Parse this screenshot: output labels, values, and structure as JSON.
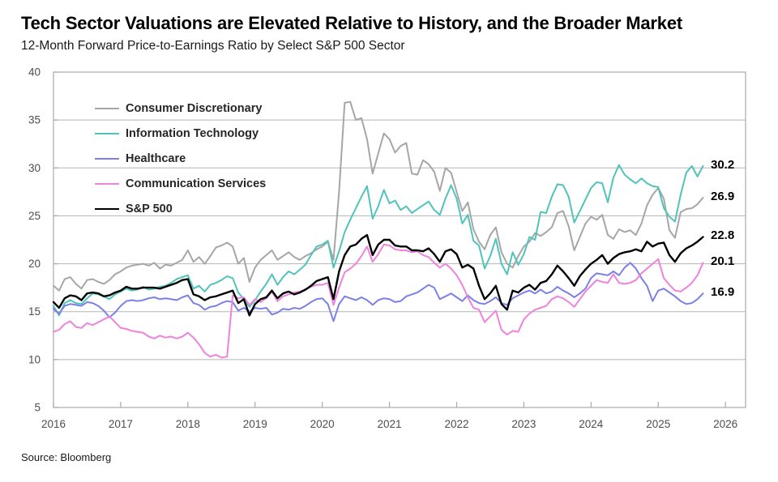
{
  "header": {
    "title": "Tech Sector Valuations are Elevated Relative to History, and the Broader Market",
    "subtitle": "12-Month Forward Price-to-Earnings Ratio by Select S&P 500 Sector"
  },
  "footer": {
    "source": "Source: Bloomberg"
  },
  "chart_data": {
    "type": "line",
    "title": "Tech Sector Valuations are Elevated Relative to History, and the Broader Market",
    "subtitle": "12-Month Forward Price-to-Earnings Ratio by Select S&P 500 Sector",
    "xlabel": "",
    "ylabel": "",
    "xlim": [
      2016,
      2026.3
    ],
    "ylim": [
      5,
      40
    ],
    "x_ticks": [
      2016,
      2017,
      2018,
      2019,
      2020,
      2021,
      2022,
      2023,
      2024,
      2025,
      2026
    ],
    "y_ticks": [
      5,
      10,
      15,
      20,
      25,
      30,
      35,
      40
    ],
    "y_gridlines": [
      10,
      15,
      20,
      25,
      30,
      35
    ],
    "grid": "horizontal",
    "legend_position": "inside-top-left",
    "x_start_year": 2016,
    "x_step_months": 1,
    "colors": {
      "gridline": "#b5b5b5",
      "frame": "#a9a9a9",
      "tick_text": "#4d4d4d"
    },
    "series": [
      {
        "name": "Consumer Discretionary",
        "color": "#a6a6a6",
        "width": 2.0,
        "end_label": "26.9",
        "values": [
          17.7,
          17.2,
          18.4,
          18.6,
          17.9,
          17.4,
          18.3,
          18.4,
          18.1,
          17.9,
          18.3,
          18.9,
          19.2,
          19.6,
          19.8,
          19.9,
          20.0,
          19.8,
          20.1,
          19.5,
          19.9,
          19.8,
          20.1,
          20.4,
          21.4,
          20.2,
          20.7,
          20.0,
          20.8,
          21.7,
          21.9,
          22.2,
          21.8,
          20.0,
          20.6,
          18.1,
          19.6,
          20.4,
          20.9,
          21.4,
          20.4,
          20.8,
          21.2,
          20.7,
          20.4,
          20.8,
          21.1,
          21.5,
          21.8,
          22.3,
          20.4,
          27.5,
          36.8,
          36.9,
          35.0,
          35.2,
          33.0,
          29.4,
          31.5,
          33.6,
          33.0,
          31.6,
          32.3,
          32.6,
          29.4,
          29.3,
          30.8,
          30.4,
          29.6,
          27.6,
          30.0,
          29.5,
          27.5,
          25.5,
          26.4,
          23.6,
          22.3,
          21.5,
          23.0,
          23.8,
          21.2,
          20.0,
          19.6,
          20.8,
          21.8,
          22.3,
          23.2,
          22.9,
          23.3,
          23.8,
          25.3,
          25.5,
          23.9,
          21.4,
          22.8,
          24.2,
          24.9,
          24.6,
          25.1,
          23.0,
          22.6,
          23.6,
          23.3,
          23.5,
          23.0,
          24.2,
          26.1,
          27.2,
          27.9,
          26.8,
          23.5,
          22.7,
          25.4,
          25.7,
          25.8,
          26.2,
          26.9
        ]
      },
      {
        "name": "Information Technology",
        "color": "#4fc3bc",
        "width": 2.0,
        "end_label": "30.2",
        "values": [
          15.6,
          14.6,
          15.9,
          16.2,
          15.9,
          15.8,
          16.4,
          16.9,
          16.8,
          16.6,
          16.3,
          16.8,
          17.1,
          17.4,
          17.2,
          17.3,
          17.6,
          17.3,
          17.4,
          17.6,
          17.7,
          18.0,
          18.4,
          18.6,
          18.8,
          17.4,
          17.7,
          17.1,
          17.8,
          18.0,
          18.3,
          18.7,
          18.5,
          17.0,
          16.3,
          15.5,
          16.2,
          17.1,
          17.9,
          18.9,
          17.8,
          18.6,
          19.2,
          18.9,
          19.4,
          19.9,
          20.9,
          21.8,
          22.0,
          22.4,
          19.6,
          21.3,
          23.3,
          24.6,
          25.8,
          27.0,
          28.1,
          24.7,
          26.0,
          27.7,
          26.3,
          26.6,
          25.6,
          26.0,
          25.3,
          25.7,
          26.1,
          26.5,
          25.6,
          25.1,
          26.8,
          28.2,
          26.8,
          24.2,
          25.1,
          22.4,
          21.9,
          19.5,
          20.8,
          22.6,
          20.0,
          18.9,
          21.2,
          19.9,
          21.0,
          22.8,
          22.5,
          25.4,
          25.3,
          27.0,
          28.3,
          28.2,
          27.0,
          24.3,
          25.5,
          26.7,
          27.9,
          28.5,
          28.4,
          26.4,
          29.0,
          30.3,
          29.3,
          28.8,
          28.4,
          28.9,
          28.4,
          28.1,
          28.0,
          25.8,
          24.9,
          24.4,
          27.2,
          29.5,
          30.2,
          29.1,
          30.2
        ]
      },
      {
        "name": "Healthcare",
        "color": "#7b80e8",
        "width": 2.0,
        "end_label": "16.9",
        "values": [
          15.3,
          14.8,
          15.6,
          15.8,
          15.7,
          15.6,
          16.0,
          15.9,
          15.6,
          15.1,
          14.4,
          14.9,
          15.6,
          16.1,
          16.2,
          16.1,
          16.2,
          16.4,
          16.5,
          16.3,
          16.4,
          16.3,
          16.2,
          16.5,
          16.7,
          15.9,
          15.7,
          15.2,
          15.5,
          15.6,
          15.9,
          16.1,
          16.0,
          15.1,
          15.4,
          15.0,
          15.4,
          15.3,
          15.4,
          14.7,
          14.9,
          15.3,
          15.2,
          15.4,
          15.3,
          15.6,
          16.0,
          16.3,
          16.4,
          15.8,
          14.0,
          15.8,
          16.6,
          16.4,
          16.2,
          16.5,
          16.2,
          15.7,
          16.2,
          16.4,
          16.3,
          16.0,
          16.1,
          16.6,
          16.8,
          17.0,
          17.4,
          17.8,
          17.5,
          16.3,
          16.6,
          16.9,
          16.5,
          16.1,
          16.7,
          16.2,
          15.9,
          15.8,
          16.1,
          16.5,
          15.9,
          15.7,
          16.4,
          16.7,
          17.0,
          17.2,
          16.9,
          17.3,
          16.9,
          17.1,
          17.6,
          17.2,
          16.9,
          16.5,
          16.9,
          17.4,
          18.5,
          19.0,
          18.9,
          18.8,
          19.2,
          18.8,
          19.6,
          20.1,
          19.5,
          18.5,
          17.7,
          16.1,
          17.2,
          17.4,
          17.0,
          16.6,
          16.1,
          15.8,
          15.9,
          16.3,
          16.9
        ]
      },
      {
        "name": "Communication Services",
        "color": "#ef82dc",
        "width": 2.0,
        "end_label": "20.1",
        "values": [
          12.9,
          13.1,
          13.7,
          14.0,
          13.4,
          13.3,
          13.8,
          13.6,
          13.9,
          14.2,
          14.5,
          13.9,
          13.3,
          13.2,
          13.0,
          12.9,
          12.8,
          12.4,
          12.2,
          12.5,
          12.3,
          12.4,
          12.2,
          12.4,
          12.8,
          12.3,
          11.6,
          10.7,
          10.3,
          10.5,
          10.2,
          10.3,
          16.7,
          16.4,
          16.5,
          15.7,
          16.3,
          16.0,
          16.4,
          17.1,
          16.1,
          16.6,
          16.8,
          17.0,
          17.1,
          17.3,
          17.6,
          17.8,
          17.8,
          18.0,
          15.7,
          17.5,
          19.1,
          19.5,
          20.0,
          20.8,
          21.8,
          20.2,
          21.0,
          22.0,
          21.9,
          21.5,
          21.4,
          21.4,
          21.2,
          21.3,
          20.9,
          20.7,
          20.1,
          19.6,
          20.0,
          19.5,
          18.8,
          17.8,
          16.5,
          15.4,
          15.2,
          13.9,
          14.5,
          15.1,
          13.1,
          12.6,
          13.0,
          12.9,
          14.2,
          14.8,
          15.2,
          15.4,
          15.6,
          16.3,
          16.6,
          16.4,
          16.0,
          15.5,
          16.3,
          17.1,
          17.7,
          18.3,
          18.1,
          18.0,
          18.9,
          18.0,
          17.9,
          18.0,
          18.3,
          19.0,
          19.5,
          20.0,
          20.5,
          18.5,
          17.8,
          17.2,
          17.1,
          17.5,
          18.0,
          18.8,
          20.1
        ]
      },
      {
        "name": "S&P 500",
        "color": "#000000",
        "width": 2.4,
        "end_label": "22.8",
        "values": [
          16.0,
          15.4,
          16.4,
          16.7,
          16.6,
          16.2,
          16.9,
          17.0,
          16.9,
          16.6,
          16.7,
          17.0,
          17.2,
          17.6,
          17.4,
          17.4,
          17.5,
          17.5,
          17.5,
          17.4,
          17.6,
          17.8,
          18.0,
          18.3,
          18.4,
          16.8,
          16.6,
          16.2,
          16.5,
          16.6,
          16.8,
          17.0,
          17.2,
          15.9,
          16.3,
          14.6,
          15.8,
          16.3,
          16.5,
          17.2,
          16.4,
          16.9,
          17.1,
          16.8,
          17.0,
          17.3,
          17.7,
          18.2,
          18.4,
          18.6,
          16.3,
          19.2,
          20.9,
          21.8,
          22.0,
          22.6,
          23.0,
          20.9,
          22.0,
          22.5,
          22.5,
          21.9,
          21.8,
          21.8,
          21.4,
          21.4,
          21.3,
          21.6,
          21.0,
          20.2,
          21.3,
          21.5,
          21.0,
          19.6,
          19.9,
          19.5,
          17.7,
          16.3,
          16.9,
          17.7,
          15.8,
          15.2,
          17.2,
          17.0,
          17.5,
          17.8,
          17.3,
          18.0,
          18.2,
          18.9,
          19.8,
          19.2,
          18.5,
          17.7,
          18.7,
          19.4,
          20.0,
          20.4,
          20.9,
          20.0,
          20.6,
          21.0,
          21.2,
          21.3,
          21.5,
          21.3,
          22.3,
          21.8,
          22.1,
          22.2,
          20.9,
          20.2,
          21.1,
          21.6,
          21.9,
          22.3,
          22.8
        ]
      }
    ]
  }
}
